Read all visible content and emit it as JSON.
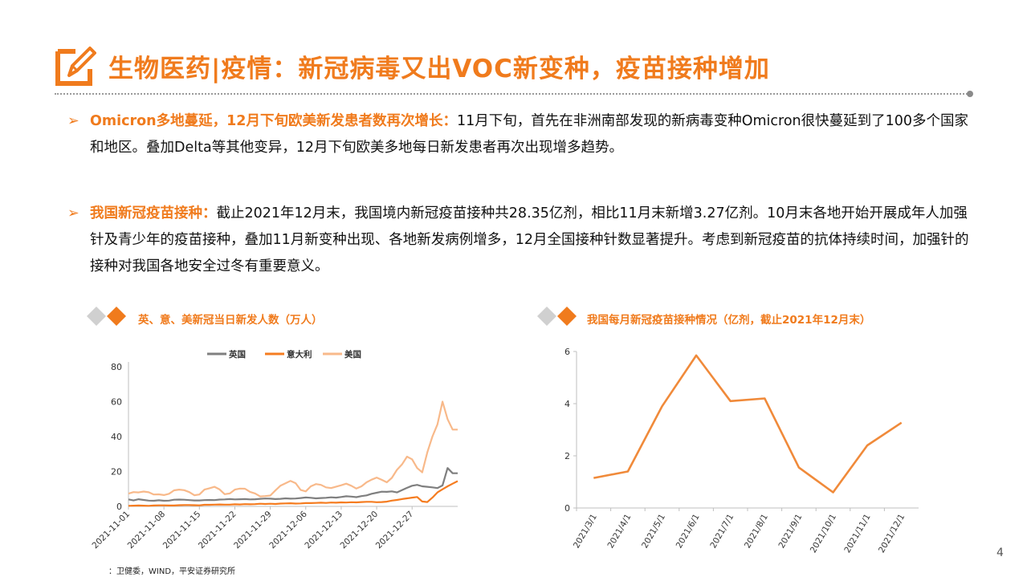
{
  "header": {
    "title": "生物医药|疫情：新冠病毒又出VOC新变种，疫苗接种增加"
  },
  "bullets": [
    {
      "arrow": "➢",
      "lead": "Omicron多地蔓延，12月下旬欧美新发患者数再次增长：",
      "text": "11月下旬，首先在非洲南部发现的新病毒变种Omicron很快蔓延到了100多个国家和地区。叠加Delta等其他变异，12月下旬欧美多地每日新发患者再次出现增多趋势。"
    },
    {
      "arrow": "➢",
      "lead": "我国新冠疫苗接种：",
      "text": "截止2021年12月末，我国境内新冠疫苗接种共28.35亿剂，相比11月末新增3.27亿剂。10月末各地开始开展成年人加强针及青少年的疫苗接种，叠加11月新变种出现、各地新发病例增多，12月全国接种针数显著提升。考虑到新冠疫苗的抗体持续时间，加强针的接种对我国各地安全过冬有重要意义。"
    }
  ],
  "charts_meta": {
    "left_title": "英、意、美新冠当日新发人数（万人）",
    "right_title": "我国每月新冠疫苗接种情况（亿剂，截止2021年12月末）"
  },
  "colors": {
    "accent": "#f07b1d",
    "uk": "#7f7f7f",
    "italy": "#f57c20",
    "us": "#f8b98a",
    "vaccine": "#f08a3a"
  },
  "chart_data": [
    {
      "type": "line",
      "title": "英、意、美新冠当日新发人数（万人）",
      "xlabel": "",
      "ylabel": "",
      "ylim": [
        0,
        80
      ],
      "yticks": [
        0,
        20,
        40,
        60,
        80
      ],
      "x_tick_labels": [
        "2021-11-01",
        "2021-11-08",
        "2021-11-15",
        "2021-11-22",
        "2021-11-29",
        "2021-12-06",
        "2021-12-13",
        "2021-12-20",
        "2021-12-27"
      ],
      "legend_position": "top",
      "x_start": "2021-11-01",
      "x_end": "2022-01-03",
      "series": [
        {
          "name": "英国",
          "values": [
            4.0,
            3.4,
            4.1,
            3.7,
            3.3,
            3.2,
            3.5,
            3.2,
            3.3,
            3.8,
            3.9,
            3.8,
            3.6,
            3.4,
            3.4,
            3.6,
            3.7,
            3.6,
            3.9,
            4.0,
            4.2,
            4.0,
            4.1,
            4.2,
            4.0,
            4.1,
            4.3,
            4.5,
            4.4,
            4.2,
            4.3,
            4.6,
            4.4,
            4.5,
            4.8,
            5.1,
            4.9,
            4.6,
            4.8,
            4.9,
            5.2,
            5.0,
            5.4,
            5.8,
            5.6,
            5.3,
            5.9,
            6.3,
            7.2,
            7.8,
            8.4,
            8.3,
            8.6,
            8.0,
            9.3,
            10.6,
            11.8,
            12.3,
            11.5,
            11.2,
            10.9,
            10.5,
            12.0,
            22.0,
            19.0,
            19.0
          ]
        },
        {
          "name": "意大利",
          "values": [
            0.3,
            0.4,
            0.5,
            0.4,
            0.3,
            0.5,
            0.6,
            0.6,
            0.5,
            0.5,
            0.7,
            0.8,
            0.8,
            0.7,
            0.6,
            0.9,
            0.9,
            1.0,
            1.1,
            1.0,
            1.0,
            1.2,
            1.1,
            1.3,
            1.2,
            1.3,
            1.5,
            1.4,
            1.5,
            1.4,
            1.6,
            1.7,
            1.8,
            1.6,
            1.7,
            1.9,
            1.9,
            2.0,
            2.1,
            2.0,
            2.2,
            2.1,
            2.3,
            2.2,
            2.4,
            2.3,
            2.5,
            2.6,
            2.6,
            2.4,
            2.5,
            2.7,
            3.3,
            3.7,
            4.2,
            4.6,
            5.0,
            5.4,
            2.8,
            2.5,
            5.0,
            8.0,
            9.8,
            11.5,
            13.0,
            14.5
          ]
        },
        {
          "name": "美国",
          "values": [
            7.3,
            8.2,
            8.0,
            8.5,
            8.1,
            6.8,
            6.9,
            6.5,
            7.2,
            9.2,
            9.6,
            9.3,
            8.2,
            6.4,
            6.8,
            9.6,
            10.4,
            11.2,
            9.7,
            7.0,
            7.4,
            9.6,
            10.2,
            10.1,
            8.3,
            7.4,
            5.7,
            5.9,
            6.2,
            9.1,
            11.8,
            13.2,
            14.6,
            13.3,
            9.4,
            8.6,
            11.5,
            12.8,
            12.3,
            10.9,
            10.5,
            11.3,
            12.1,
            13.0,
            11.8,
            10.2,
            11.5,
            13.8,
            15.3,
            16.5,
            15.2,
            13.8,
            16.3,
            20.9,
            24.0,
            28.5,
            27.0,
            22.0,
            19.5,
            31.0,
            40.0,
            47.0,
            60.0,
            50.0,
            44.0,
            44.0
          ]
        }
      ]
    },
    {
      "type": "line",
      "title": "我国每月新冠疫苗接种情况（亿剂，截止2021年12月末）",
      "xlabel": "",
      "ylabel": "",
      "ylim": [
        0,
        6
      ],
      "yticks": [
        0,
        2,
        4,
        6
      ],
      "categories": [
        "2021/3/1",
        "2021/4/1",
        "2021/5/1",
        "2021/6/1",
        "2021/7/1",
        "2021/8/1",
        "2021/9/1",
        "2021/10/1",
        "2021/11/1",
        "2021/12/1"
      ],
      "series": [
        {
          "values": [
            1.15,
            1.4,
            3.9,
            5.85,
            4.1,
            4.2,
            1.55,
            0.6,
            2.4,
            3.27
          ]
        }
      ]
    }
  ],
  "footer": {
    "source": "：卫健委，WIND，平安证券研究所",
    "page_number": "4"
  }
}
